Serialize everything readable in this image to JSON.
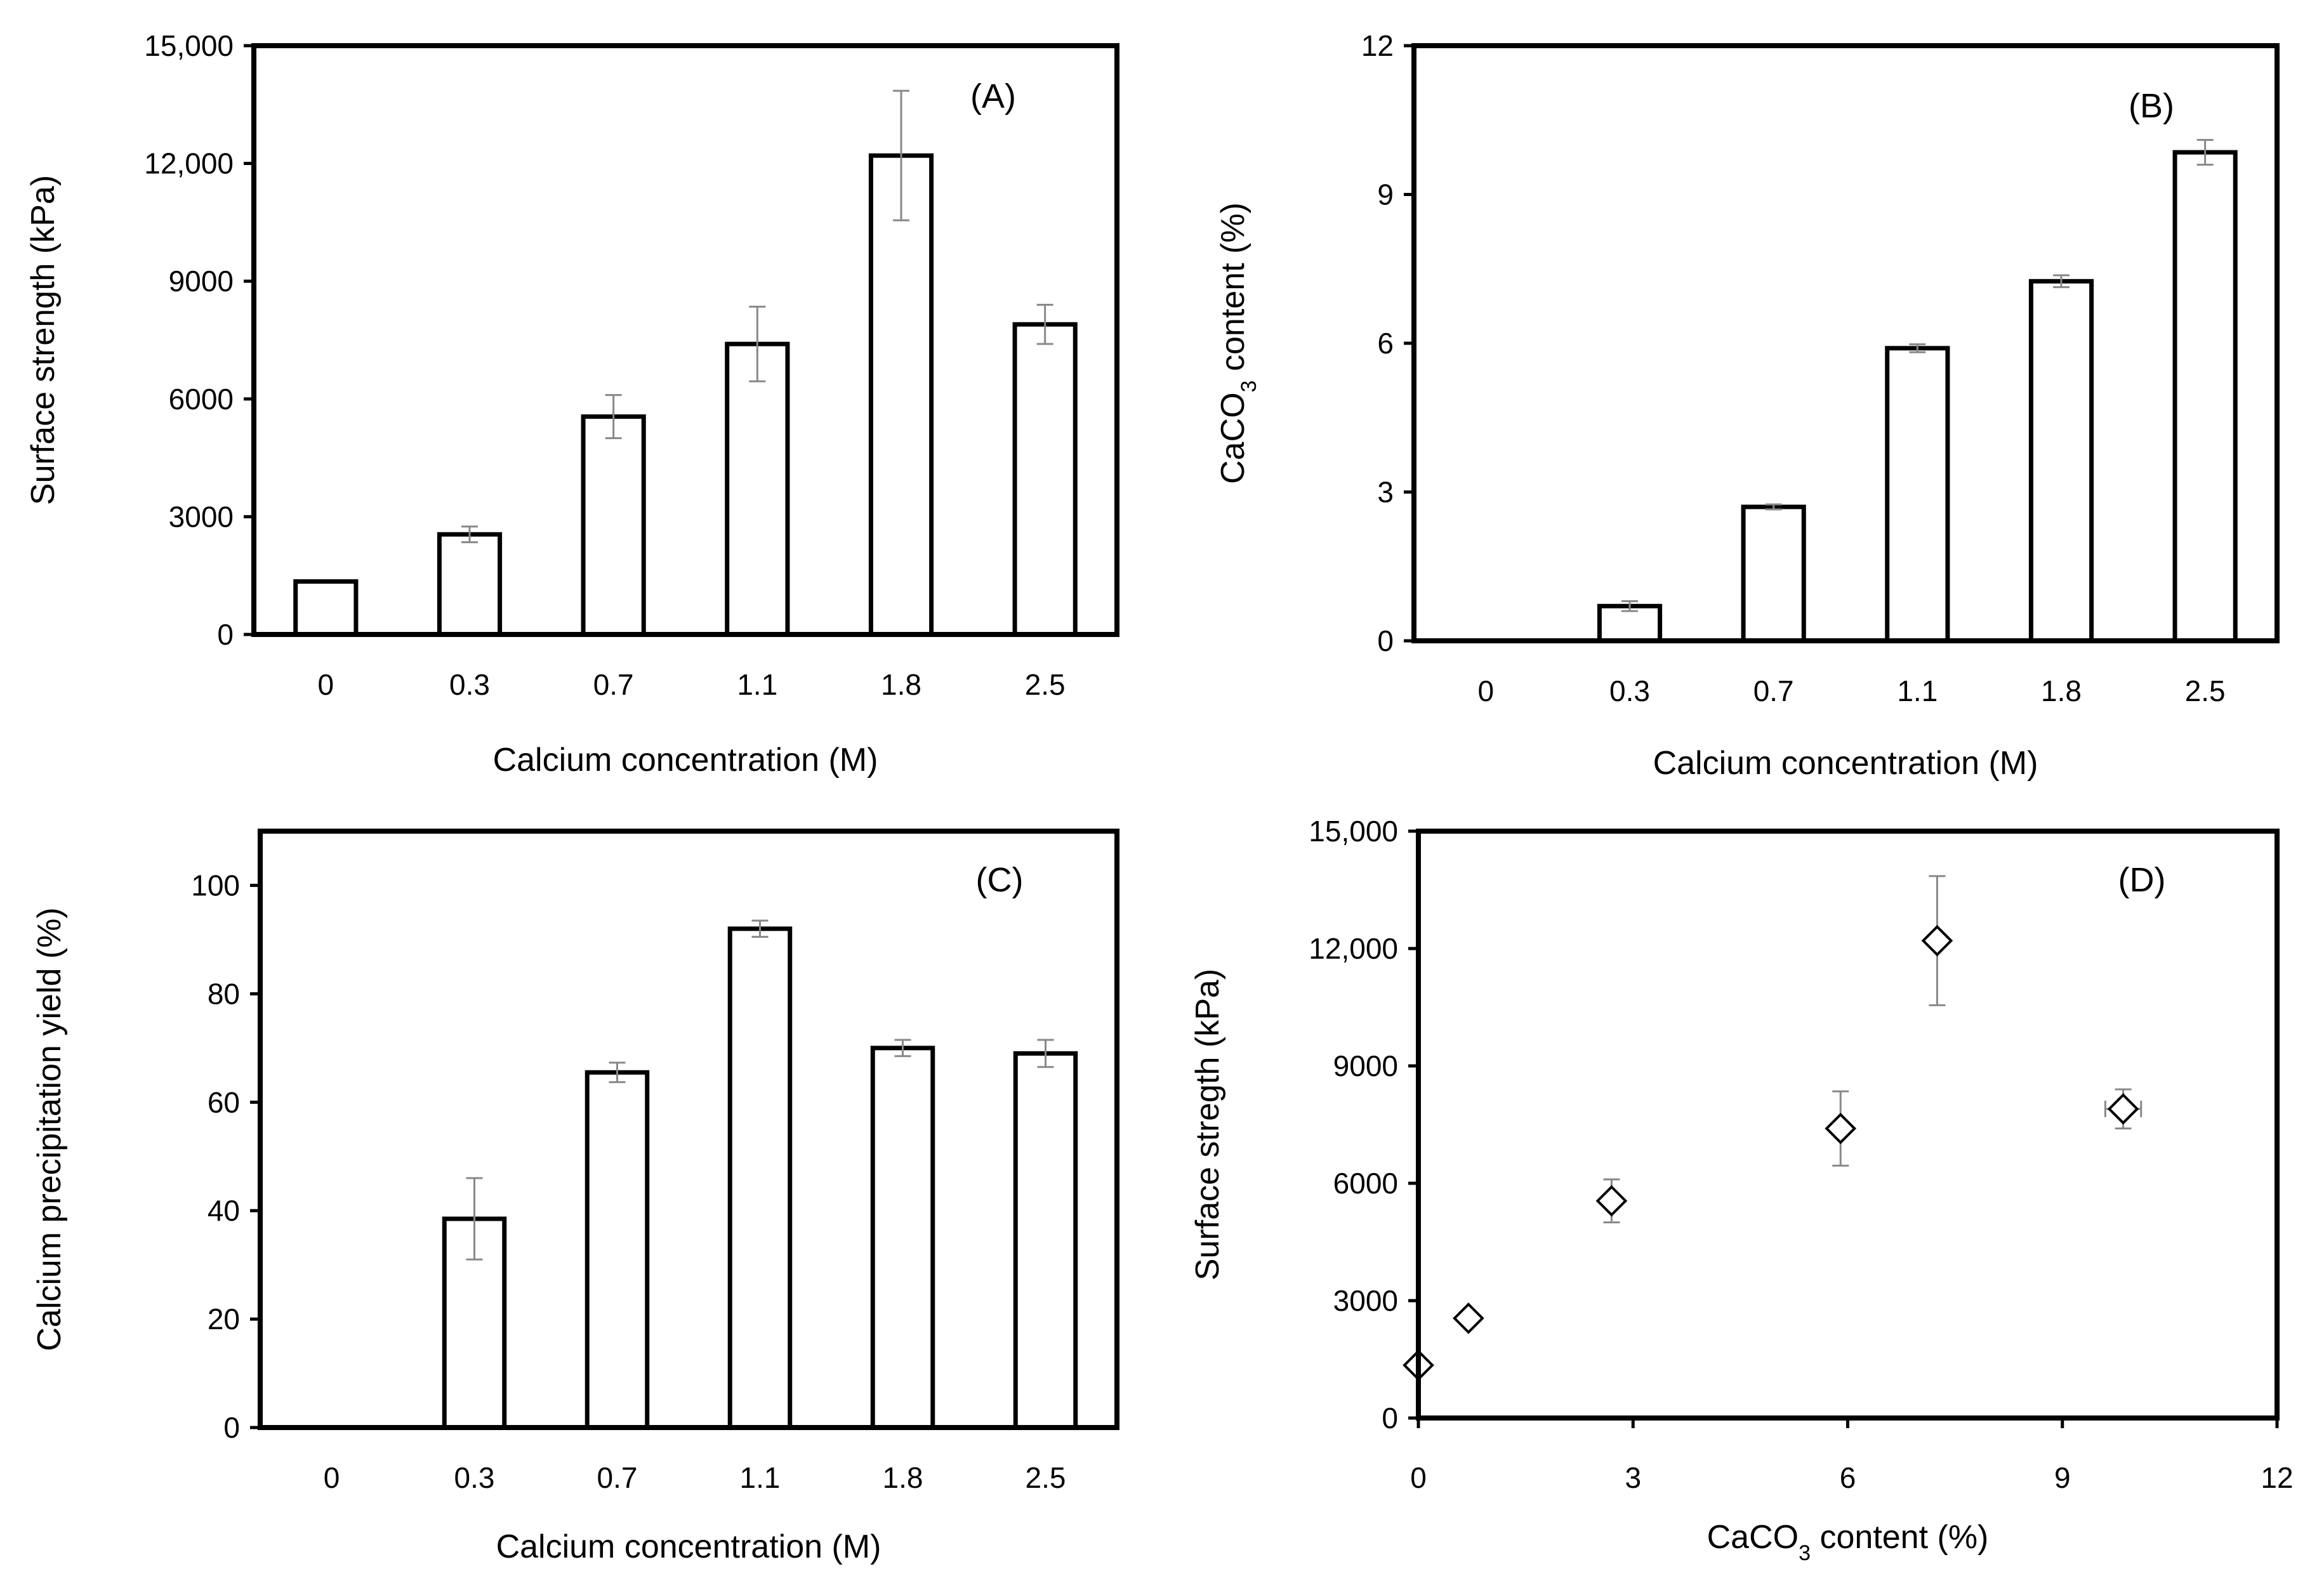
{
  "chart_data": [
    {
      "type": "bar",
      "panel_label": "(A)",
      "categories": [
        "0",
        "0.3",
        "0.7",
        "1.1",
        "1.8",
        "2.5"
      ],
      "values": [
        1350,
        2550,
        5550,
        7400,
        12200,
        7900
      ],
      "errors": [
        0,
        200,
        550,
        950,
        1650,
        500
      ],
      "xlabel": "Calcium concentration (M)",
      "ylabel": "Surface strength (kPa)",
      "ylim": [
        0,
        15000
      ],
      "yticks": [
        0,
        3000,
        6000,
        9000,
        12000,
        15000
      ],
      "ytick_labels": [
        "0",
        "3000",
        "6000",
        "9000",
        "12,000",
        "15,000"
      ],
      "bar_color": "#ffffff",
      "edge_color": "#000000",
      "error_color": "#888888"
    },
    {
      "type": "bar",
      "panel_label": "(B)",
      "categories": [
        "0",
        "0.3",
        "0.7",
        "1.1",
        "1.8",
        "2.5"
      ],
      "values": [
        0,
        0.7,
        2.7,
        5.9,
        7.25,
        9.85
      ],
      "errors": [
        0,
        0.1,
        0.05,
        0.08,
        0.12,
        0.25
      ],
      "xlabel": "Calcium concentration (M)",
      "ylabel": {
        "pre": "CaCO",
        "sub": "3",
        "post": "  content (%)"
      },
      "ylim": [
        0,
        12
      ],
      "yticks": [
        0,
        3,
        6,
        9,
        12
      ],
      "ytick_labels": [
        "0",
        "3",
        "6",
        "9",
        "12"
      ],
      "bar_color": "#ffffff",
      "edge_color": "#000000",
      "error_color": "#888888"
    },
    {
      "type": "bar",
      "panel_label": "(C)",
      "categories": [
        "0",
        "0.3",
        "0.7",
        "1.1",
        "1.8",
        "2.5"
      ],
      "values": [
        0,
        38.5,
        65.5,
        92,
        70,
        69
      ],
      "errors": [
        0,
        7.5,
        1.8,
        1.5,
        1.5,
        2.5
      ],
      "xlabel": "Calcium concentration (M)",
      "ylabel": "Calcium precipitation yield (%)",
      "ylim": [
        0,
        110
      ],
      "yticks": [
        0,
        20,
        40,
        60,
        80,
        100
      ],
      "ytick_labels": [
        "0",
        "20",
        "40",
        "60",
        "80",
        "100"
      ],
      "bar_color": "#ffffff",
      "edge_color": "#000000",
      "error_color": "#888888"
    },
    {
      "type": "scatter",
      "panel_label": "(D)",
      "marker": "diamond",
      "points": [
        {
          "x": 0,
          "y": 1350,
          "xerr": 0,
          "yerr": 0
        },
        {
          "x": 0.7,
          "y": 2550,
          "xerr": 0,
          "yerr": 0
        },
        {
          "x": 2.7,
          "y": 5550,
          "xerr": 0,
          "yerr": 550
        },
        {
          "x": 5.9,
          "y": 7400,
          "xerr": 0,
          "yerr": 950
        },
        {
          "x": 7.25,
          "y": 12200,
          "xerr": 0,
          "yerr": 1650
        },
        {
          "x": 9.85,
          "y": 7900,
          "xerr": 0.25,
          "yerr": 500
        }
      ],
      "xlabel": {
        "pre": "CaCO",
        "sub": "3",
        "post": " content (%)"
      },
      "ylabel": "Surface stregth (kPa)",
      "xlim": [
        0,
        12
      ],
      "xticks": [
        0,
        3,
        6,
        9,
        12
      ],
      "xtick_labels": [
        "0",
        "3",
        "6",
        "9",
        "12"
      ],
      "ylim": [
        0,
        15000
      ],
      "yticks": [
        0,
        3000,
        6000,
        9000,
        12000,
        15000
      ],
      "ytick_labels": [
        "0",
        "3000",
        "6000",
        "9000",
        "12,000",
        "15,000"
      ],
      "marker_color": "#ffffff",
      "edge_color": "#000000",
      "error_color": "#888888"
    }
  ]
}
